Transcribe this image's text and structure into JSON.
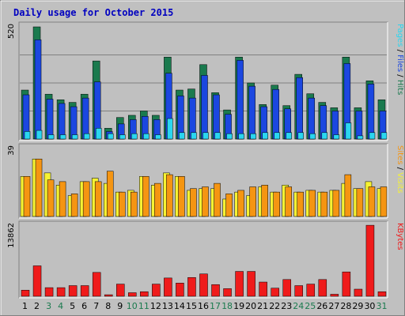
{
  "title": "Daily usage for October 2015",
  "colors": {
    "title": "#0000c0",
    "panel_bg": "#c0c0c0",
    "frame_bg": "#c0c0c0",
    "hits": "#1a7a4e",
    "files": "#1b47e0",
    "pages": "#2ad6f0",
    "visits": "#f6f233",
    "sites": "#f59512",
    "kbytes": "#ef1b1b",
    "weekend_day": "#1a7a4e",
    "weekday_day": "#000000"
  },
  "chart_data": {
    "type": "bar",
    "categories": [
      "1",
      "2",
      "3",
      "4",
      "5",
      "6",
      "7",
      "8",
      "9",
      "10",
      "11",
      "12",
      "13",
      "14",
      "15",
      "16",
      "17",
      "18",
      "19",
      "20",
      "21",
      "22",
      "23",
      "24",
      "25",
      "26",
      "27",
      "28",
      "29",
      "30",
      "31"
    ],
    "weekend_days": [
      "3",
      "4",
      "10",
      "11",
      "17",
      "18",
      "24",
      "25",
      "31"
    ],
    "panels": [
      {
        "name": "hits-files-pages",
        "ymax_label": "520",
        "ymax": 520,
        "side_label": [
          {
            "text": "Pages",
            "color": "#2ad6f0"
          },
          {
            "text": " / ",
            "color": "#000000"
          },
          {
            "text": "Files",
            "color": "#1b47e0"
          },
          {
            "text": " / ",
            "color": "#000000"
          },
          {
            "text": "Hits",
            "color": "#1a7a4e"
          }
        ],
        "series": [
          {
            "name": "Hits",
            "color": "#1a7a4e",
            "values": [
              227,
              520,
              208,
              182,
              170,
              208,
              362,
              50,
              100,
              110,
              130,
              110,
              380,
              227,
              232,
              345,
              215,
              135,
              380,
              260,
              160,
              250,
              155,
              300,
              210,
              170,
              145,
              380,
              145,
              270,
              182
            ]
          },
          {
            "name": "Files",
            "color": "#1b47e0",
            "values": [
              205,
              460,
              185,
              165,
              150,
              190,
              265,
              35,
              70,
              90,
              105,
              90,
              305,
              200,
              190,
              295,
              205,
              115,
              365,
              245,
              150,
              230,
              140,
              285,
              190,
              155,
              130,
              350,
              130,
              255,
              130
            ]
          },
          {
            "name": "Pages",
            "color": "#2ad6f0",
            "values": [
              35,
              40,
              20,
              20,
              20,
              25,
              50,
              25,
              20,
              25,
              25,
              20,
              95,
              30,
              30,
              30,
              30,
              25,
              25,
              25,
              30,
              30,
              30,
              30,
              25,
              30,
              20,
              75,
              15,
              30,
              30
            ]
          }
        ]
      },
      {
        "name": "sites-visits",
        "ymax_label": "39",
        "ymax": 39,
        "side_label": [
          {
            "text": "Sites",
            "color": "#f59512"
          },
          {
            "text": " / ",
            "color": "#000000"
          },
          {
            "text": "Visits",
            "color": "#f6f233"
          }
        ],
        "series": [
          {
            "name": "Visits",
            "color": "#f6f233",
            "values": [
              23,
              33,
              25,
              18,
              12,
              20,
              22,
              19,
              14,
              15,
              23,
              18,
              25,
              23,
              15,
              16,
              16,
              10,
              14,
              12,
              17,
              14,
              18,
              14,
              15,
              14,
              15,
              19,
              16,
              20,
              16
            ]
          },
          {
            "name": "Sites",
            "color": "#f59512",
            "values": [
              23,
              33,
              21,
              20,
              13,
              20,
              20,
              26,
              14,
              14,
              23,
              19,
              24,
              23,
              16,
              17,
              19,
              13,
              15,
              17,
              18,
              14,
              17,
              14,
              15,
              14,
              15,
              24,
              16,
              17,
              17
            ]
          }
        ]
      },
      {
        "name": "kbytes",
        "ymax_label": "13862",
        "ymax": 13862,
        "side_label": [
          {
            "text": "KBytes",
            "color": "#ef1b1b"
          }
        ],
        "series": [
          {
            "name": "KBytes",
            "color": "#ef1b1b",
            "values": [
              1200,
              6000,
              1700,
              1700,
              2100,
              2100,
              4700,
              300,
              2400,
              700,
              900,
              2400,
              3600,
              2600,
              3700,
              4400,
              2300,
              1500,
              4900,
              4900,
              2800,
              1600,
              3300,
              2100,
              2400,
              3300,
              400,
              4800,
              1400,
              14000,
              900
            ]
          }
        ]
      }
    ]
  }
}
